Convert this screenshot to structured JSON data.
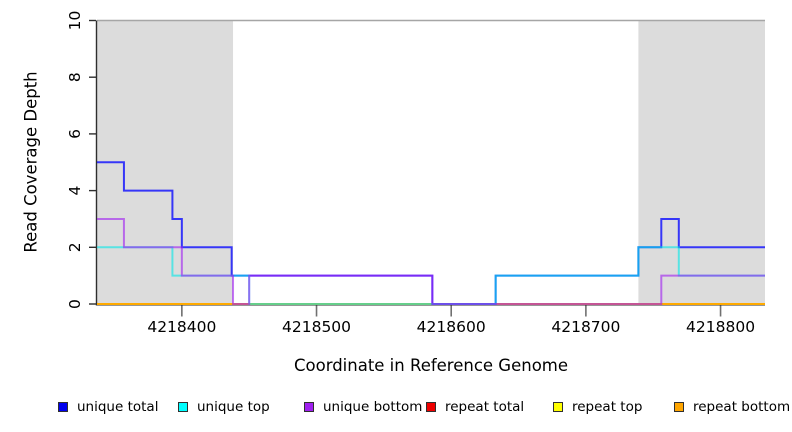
{
  "chart_data": {
    "type": "line",
    "line_style": "step",
    "title": "",
    "xlabel": "Coordinate in Reference Genome",
    "ylabel": "Read Coverage Depth",
    "xlim": [
      4218337,
      4218833
    ],
    "ylim": [
      0,
      10
    ],
    "x_ticks": [
      4218400,
      4218500,
      4218600,
      4218700,
      4218800
    ],
    "y_ticks": [
      0,
      2,
      4,
      6,
      8,
      10
    ],
    "grid": false,
    "legend_position": "bottom",
    "plot_background": "#ffffff",
    "top_border_color": "#a6a6a6",
    "axis_color": "#2e2e2e",
    "tick_color": "#707070",
    "shaded_regions": [
      {
        "name": "repeat-region-left",
        "from": 4218337,
        "to": 4218438,
        "color": "#dcdcdc"
      },
      {
        "name": "repeat-region-right",
        "from": 4218739,
        "to": 4218833,
        "color": "#dcdcdc"
      }
    ],
    "series": [
      {
        "name": "repeat total",
        "color": "#ee0000",
        "opacity": 0.8,
        "steps": [
          [
            4218337,
            0
          ]
        ]
      },
      {
        "name": "repeat top",
        "color": "#ffff00",
        "opacity": 0.8,
        "steps": [
          [
            4218337,
            0
          ]
        ]
      },
      {
        "name": "repeat bottom",
        "color": "#ffa500",
        "opacity": 0.9,
        "steps": [
          [
            4218337,
            0
          ]
        ]
      },
      {
        "name": "unique total",
        "color": "#0d0dff",
        "opacity": 0.8,
        "steps": [
          [
            4218337,
            5
          ],
          [
            4218357,
            4
          ],
          [
            4218393,
            3
          ],
          [
            4218400,
            2
          ],
          [
            4218437,
            1
          ],
          [
            4218586,
            0
          ],
          [
            4218633,
            1
          ],
          [
            4218739,
            2
          ],
          [
            4218756,
            3
          ],
          [
            4218769,
            2
          ]
        ]
      },
      {
        "name": "unique top",
        "color": "#00e8e8",
        "opacity": 0.6,
        "steps": [
          [
            4218337,
            2
          ],
          [
            4218393,
            1
          ],
          [
            4218450,
            0
          ],
          [
            4218633,
            1
          ],
          [
            4218739,
            2
          ],
          [
            4218769,
            1
          ]
        ]
      },
      {
        "name": "unique bottom",
        "color": "#a020f0",
        "opacity": 0.62,
        "steps": [
          [
            4218337,
            3
          ],
          [
            4218357,
            2
          ],
          [
            4218400,
            1
          ],
          [
            4218438,
            0
          ],
          [
            4218450,
            1
          ],
          [
            4218586,
            0
          ],
          [
            4218756,
            1
          ]
        ]
      }
    ],
    "legend": [
      {
        "label": "unique total",
        "color": "#0000ee"
      },
      {
        "label": "unique top",
        "color": "#00ffff"
      },
      {
        "label": "unique bottom",
        "color": "#a020f0"
      },
      {
        "label": "repeat total",
        "color": "#ee0000"
      },
      {
        "label": "repeat top",
        "color": "#ffff00"
      },
      {
        "label": "repeat bottom",
        "color": "#ffa500"
      }
    ]
  }
}
